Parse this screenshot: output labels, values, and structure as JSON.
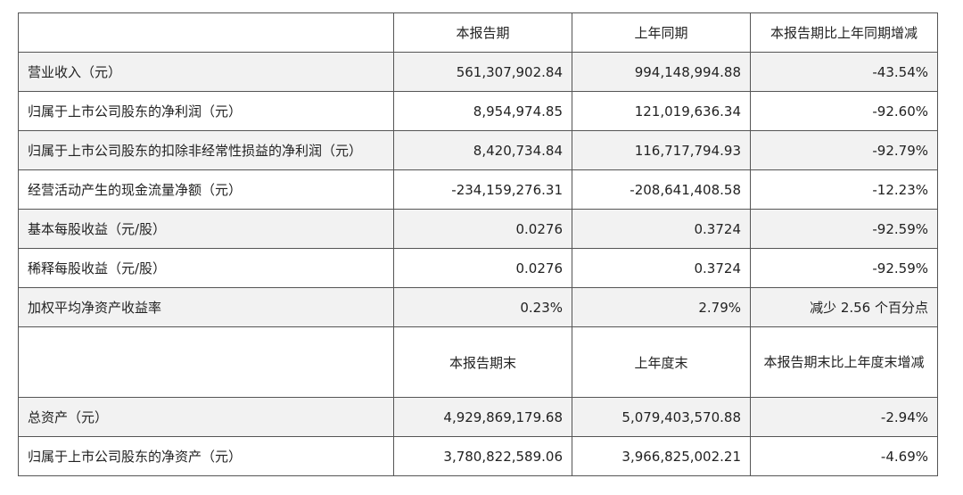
{
  "headers": {
    "current_period": "本报告期",
    "last_year_same": "上年同期",
    "change_pct": "本报告期比上年同期增减"
  },
  "rows": [
    {
      "label": "营业收入（元）",
      "current": "561,307,902.84",
      "previous": "994,148,994.88",
      "change": "-43.54%"
    },
    {
      "label": "归属于上市公司股东的净利润（元）",
      "current": "8,954,974.85",
      "previous": "121,019,636.34",
      "change": "-92.60%"
    },
    {
      "label": "归属于上市公司股东的扣除非经常性损益的净利润（元）",
      "current": "8,420,734.84",
      "previous": "116,717,794.93",
      "change": "-92.79%"
    },
    {
      "label": "经营活动产生的现金流量净额（元）",
      "current": "-234,159,276.31",
      "previous": "-208,641,408.58",
      "change": "-12.23%"
    },
    {
      "label": "基本每股收益（元/股）",
      "current": "0.0276",
      "previous": "0.3724",
      "change": "-92.59%"
    },
    {
      "label": "稀释每股收益（元/股）",
      "current": "0.0276",
      "previous": "0.3724",
      "change": "-92.59%"
    },
    {
      "label": "加权平均净资产收益率",
      "current": "0.23%",
      "previous": "2.79%",
      "change": "减少 2.56 个百分点"
    }
  ],
  "headers2": {
    "period_end": "本报告期末",
    "last_year_end": "上年度末",
    "change_pct": "本报告期末比上年度末增减"
  },
  "rows2": [
    {
      "label": "总资产（元）",
      "current": "4,929,869,179.68",
      "previous": "5,079,403,570.88",
      "change": "-2.94%"
    },
    {
      "label": "归属于上市公司股东的净资产（元）",
      "current": "3,780,822,589.06",
      "previous": "3,966,825,002.21",
      "change": "-4.69%"
    }
  ]
}
